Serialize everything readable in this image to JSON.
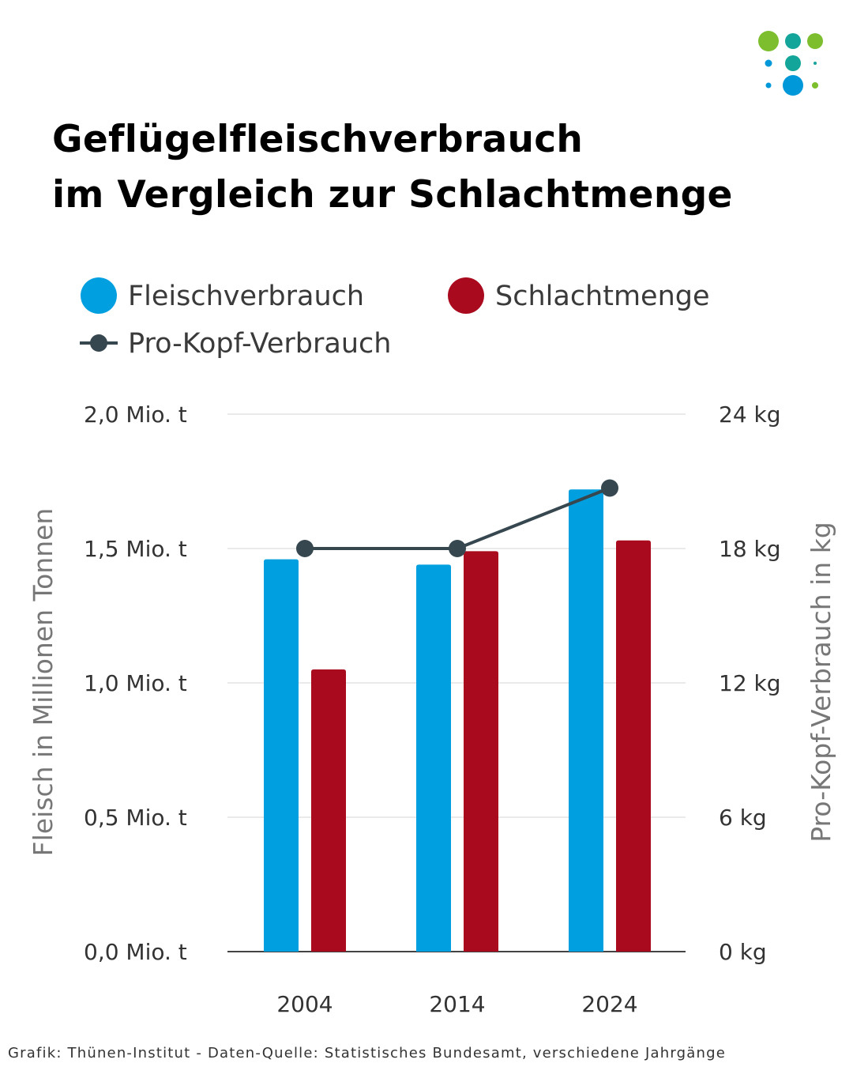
{
  "title": {
    "line1": "Geflügelfleischverbrauch",
    "line2": "im Vergleich zur Schlachtmenge"
  },
  "logo": {
    "icon": "dot-grid-logo-icon",
    "colors": [
      "#7dbe2e",
      "#13a59a",
      "#0098d8"
    ]
  },
  "footer": {
    "credit": "Grafik: Thünen-Institut - Daten-Quelle: Statistisches Bundesamt, verschiedene Jahrgänge"
  },
  "chart_data": {
    "type": "bar",
    "title": "Geflügelfleischverbrauch im Vergleich zur Schlachtmenge",
    "categories": [
      "2004",
      "2014",
      "2024"
    ],
    "series": [
      {
        "name": "Fleischverbrauch",
        "kind": "bar",
        "axis": "left",
        "color": "#009fe0",
        "values": [
          1.46,
          1.44,
          1.72
        ]
      },
      {
        "name": "Schlachtmenge",
        "kind": "bar",
        "axis": "left",
        "color": "#aa0a1e",
        "values": [
          1.05,
          1.49,
          1.53
        ]
      },
      {
        "name": "Pro-Kopf-Verbrauch",
        "kind": "line",
        "axis": "right",
        "color": "#37474f",
        "values": [
          18.0,
          18.0,
          20.7
        ]
      }
    ],
    "ylabel": "Fleisch in Millionen Tonnen",
    "ylabel_right": "Pro-Kopf-Verbrauch in kg",
    "ylim": [
      0,
      2.0
    ],
    "ylim_right": [
      0,
      24
    ],
    "yticks": [
      0,
      0.5,
      1.0,
      1.5,
      2.0
    ],
    "ytick_labels": [
      "0,0 Mio. t",
      "0,5 Mio. t",
      "1,0 Mio. t",
      "1,5 Mio. t",
      "2,0 Mio. t"
    ],
    "yticks_right": [
      0,
      6,
      12,
      18,
      24
    ],
    "ytick_labels_right": [
      "0 kg",
      "6 kg",
      "12 kg",
      "18 kg",
      "24 kg"
    ],
    "grid": true,
    "legend_position": "top"
  }
}
